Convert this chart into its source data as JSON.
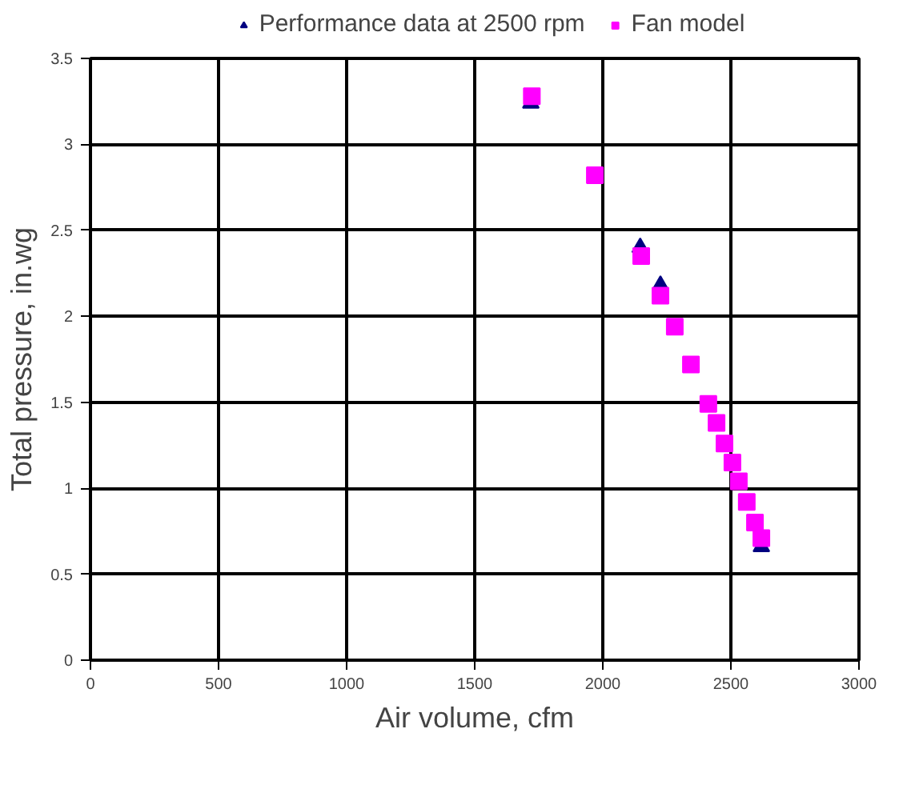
{
  "chart_data": {
    "type": "scatter",
    "xlabel": "Air volume, cfm",
    "ylabel": "Total pressure, in.wg",
    "xlim": [
      0,
      3000
    ],
    "xticks": [
      0,
      500,
      1000,
      1500,
      2000,
      2500,
      3000
    ],
    "ylim": [
      0,
      3.5
    ],
    "yticks": [
      0,
      0.5,
      1,
      1.5,
      2,
      2.5,
      3,
      3.5
    ],
    "grid": true,
    "legend": "top",
    "series": [
      {
        "name": "Performance data at 2500 rpm",
        "color": "#000080",
        "marker": "triangle",
        "x": [
          1719,
          2146,
          2225,
          2619
        ],
        "values": [
          3.24,
          2.4,
          2.18,
          0.66
        ]
      },
      {
        "name": "Fan model",
        "color": "#ff00ff",
        "marker": "square",
        "x": [
          1723,
          1969,
          2150,
          2225,
          2281,
          2344,
          2412,
          2444,
          2475,
          2506,
          2531,
          2562,
          2594,
          2619
        ],
        "values": [
          3.28,
          2.82,
          2.35,
          2.12,
          1.94,
          1.72,
          1.49,
          1.38,
          1.26,
          1.15,
          1.04,
          0.92,
          0.8,
          0.71
        ]
      }
    ]
  }
}
